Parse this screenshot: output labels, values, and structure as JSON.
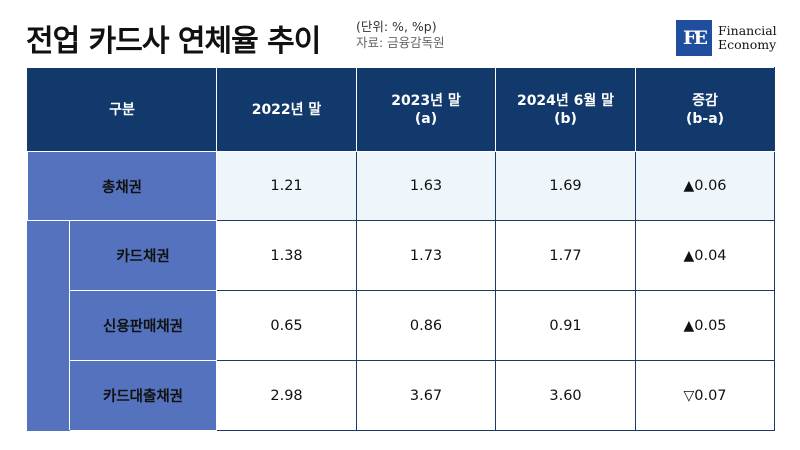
{
  "title": "전업 카드사 연체율 추이",
  "unit_note": "(단위: %, %p)",
  "source_note": "자료: 금융감독원",
  "logo": {
    "mark": "FE",
    "line1": "Financial",
    "line2": "Economy"
  },
  "header": {
    "col0": "구분",
    "col1": "2022년 말",
    "col2_l1": "2023년 말",
    "col2_l2": "(a)",
    "col3_l1": "2024년 6월 말",
    "col3_l2": "(b)",
    "col4_l1": "증감",
    "col4_l2": "(b-a)"
  },
  "colors": {
    "header_bg": "#11396b",
    "label_bg": "#5472bd",
    "total_row_bg": "#eef6fb",
    "logo_bg": "#1f4e9e"
  },
  "chart_data": {
    "type": "table",
    "title": "전업 카드사 연체율 추이",
    "unit": "(단위: %, %p)",
    "columns": [
      "구분",
      "2022년 말",
      "2023년 말 (a)",
      "2024년 6월 말 (b)",
      "증감 (b-a)"
    ],
    "rows": [
      {
        "label": "총채권",
        "v2022": "1.21",
        "v2023": "1.63",
        "v2024": "1.69",
        "change_sign": "▲",
        "change": "0.06"
      },
      {
        "label": "카드채권",
        "v2022": "1.38",
        "v2023": "1.73",
        "v2024": "1.77",
        "change_sign": "▲",
        "change": "0.04"
      },
      {
        "label": "신용판매채권",
        "v2022": "0.65",
        "v2023": "0.86",
        "v2024": "0.91",
        "change_sign": "▲",
        "change": "0.05"
      },
      {
        "label": "카드대출채권",
        "v2022": "2.98",
        "v2023": "3.67",
        "v2024": "3.60",
        "change_sign": "▽",
        "change": "0.07"
      }
    ]
  }
}
